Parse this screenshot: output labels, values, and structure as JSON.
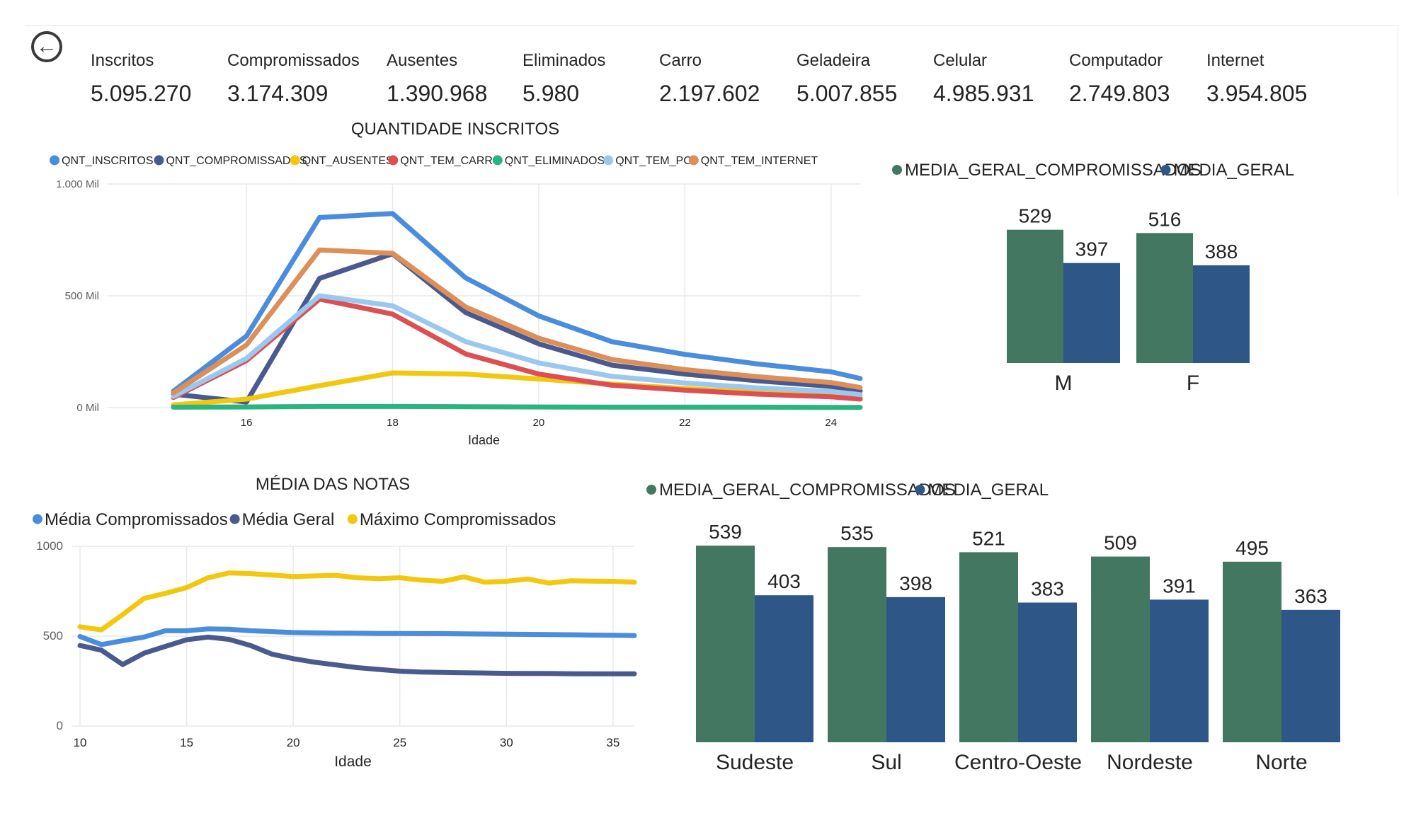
{
  "kpis": [
    {
      "label": "Inscritos",
      "value": "5.095.270"
    },
    {
      "label": "Compromissados",
      "value": "3.174.309"
    },
    {
      "label": "Ausentes",
      "value": "1.390.968"
    },
    {
      "label": "Eliminados",
      "value": "5.980"
    },
    {
      "label": "Carro",
      "value": "2.197.602"
    },
    {
      "label": "Geladeira",
      "value": "5.007.855"
    },
    {
      "label": "Celular",
      "value": "4.985.931"
    },
    {
      "label": "Computador",
      "value": "2.749.803"
    },
    {
      "label": "Internet",
      "value": "3.954.805"
    }
  ],
  "chart_data": [
    {
      "type": "line",
      "title": "QUANTIDADE INSCRITOS",
      "xlabel": "Idade",
      "ylabel": "",
      "x": [
        15,
        16,
        17,
        18,
        19,
        20,
        21,
        22,
        23,
        24,
        25
      ],
      "xticks": [
        "16",
        "18",
        "20",
        "22",
        "24"
      ],
      "xtick_values": [
        16,
        18,
        20,
        22,
        24
      ],
      "yticks": [
        "0 Mil",
        "500 Mil",
        "1.000 Mil"
      ],
      "ytick_values": [
        0,
        500,
        1000
      ],
      "xlim": [
        14.1,
        24.4
      ],
      "ylim": [
        0,
        1000
      ],
      "grid": true,
      "legend": "top-left",
      "series": [
        {
          "name": "QNT_INSCRITOS",
          "color": "#4a8ddc",
          "values": [
            73,
            320,
            850,
            868,
            580,
            410,
            295,
            238,
            195,
            160,
            130
          ]
        },
        {
          "name": "QNT_COMPROMISSADOS",
          "color": "#4b5a8e",
          "values": [
            60,
            25,
            578,
            688,
            425,
            285,
            190,
            150,
            120,
            95,
            75
          ]
        },
        {
          "name": "QNT_AUSENTES",
          "color": "#f2c80f",
          "values": [
            12,
            38,
            98,
            155,
            150,
            128,
            105,
            85,
            68,
            55,
            45
          ]
        },
        {
          "name": "QNT_TEM_CARRO",
          "color": "#dc5054",
          "values": [
            45,
            210,
            485,
            418,
            240,
            150,
            100,
            78,
            60,
            48,
            38
          ]
        },
        {
          "name": "QNT_ELIMINADOS",
          "color": "#2ab480",
          "values": [
            2,
            3,
            5,
            5,
            4,
            3,
            2,
            2,
            2,
            1,
            1
          ]
        },
        {
          "name": "QNT_TEM_PC",
          "color": "#9ac8ee",
          "values": [
            50,
            220,
            500,
            455,
            295,
            200,
            140,
            110,
            88,
            72,
            58
          ]
        },
        {
          "name": "QNT_TEM_INTERNET",
          "color": "#dd8f5a",
          "values": [
            65,
            280,
            705,
            690,
            450,
            310,
            215,
            170,
            138,
            112,
            90
          ]
        }
      ]
    },
    {
      "type": "bar",
      "title": "",
      "categories": [
        "M",
        "F"
      ],
      "legend": "top",
      "series": [
        {
          "name": "MEDIA_GERAL_COMPROMISSADOS",
          "color": "#437761",
          "values": [
            529,
            516
          ]
        },
        {
          "name": "MEDIA_GERAL",
          "color": "#2e5787",
          "values": [
            397,
            388
          ]
        }
      ],
      "labels": [
        [
          "529",
          "516"
        ],
        [
          "397",
          "388"
        ]
      ]
    },
    {
      "type": "line",
      "title": "MÉDIA DAS NOTAS",
      "xlabel": "Idade",
      "ylabel": "",
      "x": [
        10,
        11,
        12,
        13,
        14,
        15,
        16,
        17,
        18,
        19,
        20,
        21,
        22,
        23,
        24,
        25,
        26,
        27,
        28,
        29,
        30,
        31,
        32,
        33,
        34,
        35,
        36
      ],
      "xticks": [
        "10",
        "15",
        "20",
        "25",
        "30",
        "35"
      ],
      "xtick_values": [
        10,
        15,
        20,
        25,
        30,
        35
      ],
      "yticks": [
        "0",
        "500",
        "1000"
      ],
      "ytick_values": [
        0,
        500,
        1000
      ],
      "xlim": [
        9.6,
        36
      ],
      "ylim": [
        0,
        1000
      ],
      "grid": true,
      "legend": "top-left",
      "series": [
        {
          "name": "Média Compromissados",
          "color": "#4a8ddc",
          "values": [
            498,
            453,
            475,
            495,
            530,
            530,
            540,
            538,
            530,
            525,
            520,
            518,
            517,
            516,
            515,
            515,
            514,
            514,
            513,
            512,
            511,
            510,
            509,
            508,
            506,
            505,
            503
          ]
        },
        {
          "name": "Média Geral",
          "color": "#4b5a8e",
          "values": [
            448,
            422,
            342,
            405,
            443,
            480,
            495,
            482,
            448,
            400,
            375,
            355,
            340,
            325,
            315,
            305,
            300,
            298,
            296,
            295,
            293,
            292,
            292,
            291,
            290,
            290,
            290
          ]
        },
        {
          "name": "Máximo Compromissados",
          "color": "#f2c80f",
          "values": [
            552,
            535,
            620,
            710,
            738,
            770,
            825,
            852,
            848,
            840,
            832,
            835,
            838,
            825,
            820,
            825,
            812,
            805,
            830,
            800,
            805,
            818,
            795,
            808,
            806,
            805,
            800
          ]
        }
      ]
    },
    {
      "type": "bar",
      "title": "",
      "categories": [
        "Sudeste",
        "Sul",
        "Centro-Oeste",
        "Nordeste",
        "Norte"
      ],
      "legend": "top",
      "series": [
        {
          "name": "MEDIA_GERAL_COMPROMISSADOS",
          "color": "#437761",
          "values": [
            539,
            535,
            521,
            509,
            495
          ]
        },
        {
          "name": "MEDIA_GERAL",
          "color": "#2e5787",
          "values": [
            403,
            398,
            383,
            391,
            363
          ]
        }
      ],
      "labels": [
        [
          "539",
          "535",
          "521",
          "509",
          "495"
        ],
        [
          "403",
          "398",
          "383",
          "391",
          "363"
        ]
      ]
    }
  ]
}
